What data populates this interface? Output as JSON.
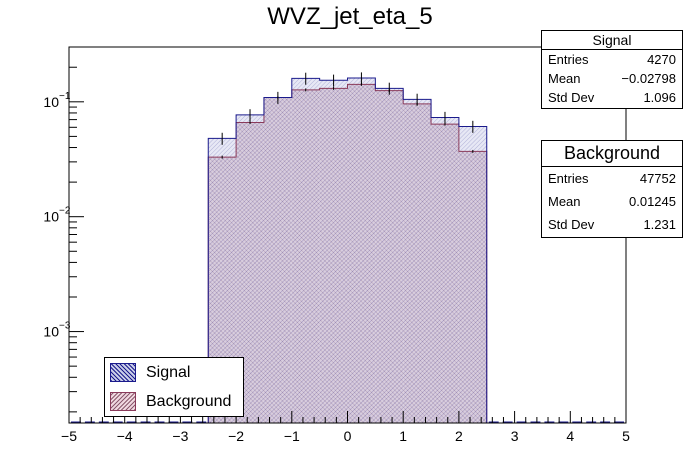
{
  "chart_data": {
    "type": "bar",
    "title": "WVZ_jet_eta_5",
    "xlabel": "",
    "ylabel": "",
    "xlim": [
      -5,
      5
    ],
    "ylim": [
      0.00016,
      0.3
    ],
    "yscale": "log",
    "x_ticks": [
      "−5",
      "−4",
      "−3",
      "−2",
      "−1",
      "0",
      "1",
      "2",
      "3",
      "4",
      "5"
    ],
    "y_ticks": [
      {
        "value": 0.1,
        "label": "10"
      },
      {
        "value": 0.01,
        "label": "10"
      },
      {
        "value": 0.001,
        "label": "10"
      }
    ],
    "y_tick_exponents": [
      "−1",
      "−2",
      "−3"
    ],
    "bin_edges": [
      -2.5,
      -2.0,
      -1.5,
      -1.0,
      -0.5,
      0.0,
      0.5,
      1.0,
      1.5,
      2.0,
      2.5
    ],
    "series": [
      {
        "name": "Signal",
        "color": "#1a1a8c",
        "fill": "#c9cde8",
        "values": [
          0.048,
          0.077,
          0.109,
          0.16,
          0.154,
          0.161,
          0.131,
          0.105,
          0.073,
          0.061
        ]
      },
      {
        "name": "Background",
        "color": "#8a3a5a",
        "fill": "#f0d8e0",
        "values": [
          0.033,
          0.066,
          0.109,
          0.127,
          0.131,
          0.142,
          0.125,
          0.096,
          0.064,
          0.037
        ]
      }
    ],
    "legend": "bottom-left",
    "grid": false
  },
  "stats": {
    "signal": {
      "title": "Signal",
      "entries_label": "Entries",
      "entries": "4270",
      "mean_label": "Mean",
      "mean": "−0.02798",
      "std_label": "Std Dev",
      "std": "1.096"
    },
    "background": {
      "title": "Background",
      "entries_label": "Entries",
      "entries": "47752",
      "mean_label": "Mean",
      "mean": "0.01245",
      "std_label": "Std Dev",
      "std": "1.231"
    }
  }
}
